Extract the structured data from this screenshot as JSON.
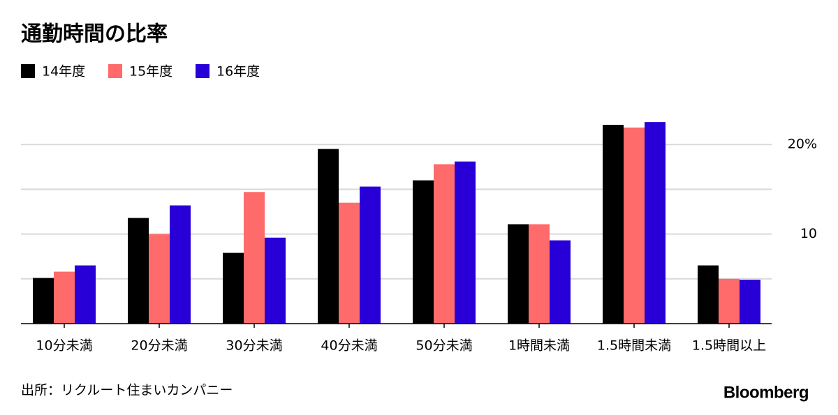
{
  "chart_data": {
    "type": "bar",
    "title": "通勤時間の比率",
    "categories": [
      "10分未満",
      "20分未満",
      "30分未満",
      "40分未満",
      "50分未満",
      "1時間未満",
      "1.5時間未満",
      "1.5時間以上"
    ],
    "series": [
      {
        "name": "14年度",
        "color": "#000000",
        "values": [
          5.1,
          11.8,
          7.9,
          19.5,
          16.0,
          11.1,
          22.2,
          6.5
        ]
      },
      {
        "name": "15年度",
        "color": "#ff6a6a",
        "values": [
          5.8,
          10.0,
          14.7,
          13.5,
          17.8,
          11.1,
          21.9,
          5.0
        ]
      },
      {
        "name": "16年度",
        "color": "#2800d7",
        "values": [
          6.5,
          13.2,
          9.6,
          15.3,
          18.1,
          9.3,
          22.5,
          4.9
        ]
      }
    ],
    "ylim": [
      0,
      25
    ],
    "yticks": [
      10,
      {
        "value": 20,
        "label": "20%"
      }
    ],
    "ygrid": [
      5,
      10,
      15,
      20
    ],
    "grid": true,
    "source": "出所：リクルート住まいカンパニー",
    "credit": "Bloomberg"
  }
}
